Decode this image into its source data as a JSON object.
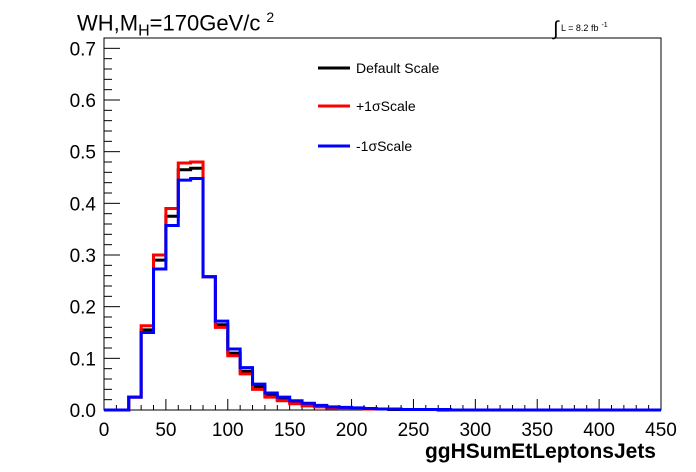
{
  "title": {
    "prefix": "WH,M",
    "sub": "H",
    "value": "=170GeV/c",
    "sup": "2"
  },
  "lumi": {
    "integral": "∫",
    "text": "L = 8.2 fb",
    "sup": "-1"
  },
  "chart_data": {
    "type": "line",
    "xlabel": "ggHSumEtLeptonsJets",
    "ylabel": "",
    "xlim": [
      0,
      450
    ],
    "ylim": [
      0,
      0.72
    ],
    "x_ticks": [
      0,
      50,
      100,
      150,
      200,
      250,
      300,
      350,
      400,
      450
    ],
    "y_ticks": [
      0.0,
      0.1,
      0.2,
      0.3,
      0.4,
      0.5,
      0.6,
      0.7
    ],
    "legend_position": "top-center",
    "bin_edges": [
      0,
      10,
      20,
      30,
      40,
      50,
      60,
      70,
      80,
      90,
      100,
      110,
      120,
      130,
      140,
      150,
      160,
      170,
      180,
      190,
      200,
      210,
      220,
      230,
      240,
      250,
      260,
      270,
      280,
      290,
      300,
      310,
      320,
      330,
      340,
      350,
      360,
      370,
      380,
      390,
      400,
      410,
      420,
      430,
      440,
      450
    ],
    "series": [
      {
        "name": "Default Scale",
        "color": "#000000",
        "values": [
          0,
          0,
          0.025,
          0.155,
          0.29,
          0.375,
          0.465,
          0.468,
          0.258,
          0.165,
          0.11,
          0.075,
          0.045,
          0.028,
          0.02,
          0.015,
          0.01,
          0.007,
          0.005,
          0.004,
          0.003,
          0.002,
          0.002,
          0.001,
          0.001,
          0.001,
          0.001,
          0,
          0,
          0,
          0,
          0,
          0,
          0,
          0,
          0,
          0,
          0,
          0,
          0,
          0,
          0,
          0,
          0,
          0
        ]
      },
      {
        "name": "+1σScale",
        "color": "#ff0000",
        "values": [
          0,
          0,
          0.025,
          0.163,
          0.3,
          0.39,
          0.478,
          0.48,
          0.258,
          0.16,
          0.105,
          0.07,
          0.04,
          0.025,
          0.018,
          0.012,
          0.008,
          0.006,
          0.004,
          0.003,
          0.003,
          0.002,
          0.002,
          0.002,
          0.001,
          0.001,
          0.001,
          0.001,
          0,
          0,
          0,
          0,
          0,
          0,
          0,
          0,
          0,
          0,
          0,
          0,
          0,
          0,
          0,
          0,
          0
        ]
      },
      {
        "name": "-1σScale",
        "color": "#0000ff",
        "values": [
          0,
          0,
          0.025,
          0.15,
          0.273,
          0.357,
          0.445,
          0.448,
          0.258,
          0.172,
          0.118,
          0.082,
          0.05,
          0.033,
          0.025,
          0.018,
          0.013,
          0.009,
          0.006,
          0.005,
          0.004,
          0.003,
          0.002,
          0.002,
          0.001,
          0.001,
          0.001,
          0.001,
          0,
          0,
          0,
          0,
          0,
          0,
          0,
          0,
          0,
          0,
          0,
          0,
          0,
          0,
          0,
          0,
          0
        ]
      }
    ]
  }
}
